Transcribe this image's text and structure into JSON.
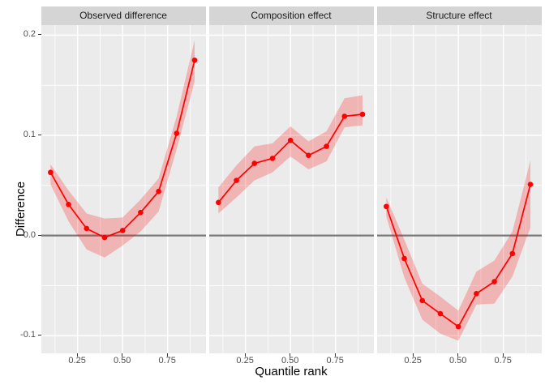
{
  "chart_data": {
    "type": "line",
    "title": "",
    "xlabel": "Quantile rank",
    "ylabel": "Difference",
    "x": [
      0.1,
      0.2,
      0.3,
      0.4,
      0.5,
      0.6,
      0.7,
      0.8,
      0.9
    ],
    "xlim": [
      0.049,
      0.963
    ],
    "ylim": [
      -0.118,
      0.21
    ],
    "hline": 0.0,
    "grid": true,
    "legend_position": "none",
    "x_ticks": {
      "values": [
        0.25,
        0.5,
        0.75
      ],
      "labels": [
        "0.25",
        "0.50",
        "0.75"
      ]
    },
    "y_ticks": {
      "values": [
        0.2,
        0.1,
        0.0,
        -0.1
      ],
      "labels": [
        "0.2",
        "0.1",
        "0.0",
        "-0.1"
      ]
    },
    "x_minor": [
      0.125,
      0.375,
      0.625,
      0.875
    ],
    "y_minor": [
      0.15,
      0.05,
      -0.05
    ],
    "panels": [
      {
        "label": "Observed difference",
        "y": [
          0.063,
          0.031,
          0.007,
          -0.002,
          0.005,
          0.023,
          0.044,
          0.102,
          0.175
        ],
        "lower": [
          0.051,
          0.014,
          -0.014,
          -0.022,
          -0.01,
          0.004,
          0.024,
          0.086,
          0.154
        ],
        "upper": [
          0.071,
          0.045,
          0.022,
          0.017,
          0.018,
          0.036,
          0.057,
          0.119,
          0.195
        ]
      },
      {
        "label": "Composition effect",
        "y": [
          0.033,
          0.055,
          0.072,
          0.077,
          0.095,
          0.08,
          0.089,
          0.119,
          0.121
        ],
        "lower": [
          0.022,
          0.038,
          0.055,
          0.063,
          0.079,
          0.066,
          0.074,
          0.108,
          0.11
        ],
        "upper": [
          0.048,
          0.07,
          0.089,
          0.092,
          0.109,
          0.094,
          0.104,
          0.137,
          0.14
        ]
      },
      {
        "label": "Structure effect",
        "y": [
          0.029,
          -0.023,
          -0.065,
          -0.078,
          -0.091,
          -0.058,
          -0.046,
          -0.018,
          0.051
        ],
        "lower": [
          0.019,
          -0.042,
          -0.084,
          -0.098,
          -0.105,
          -0.069,
          -0.068,
          -0.041,
          0.008
        ],
        "upper": [
          0.038,
          -0.004,
          -0.048,
          -0.061,
          -0.075,
          -0.036,
          -0.025,
          0.004,
          0.075
        ]
      }
    ]
  },
  "style": {
    "line_color": "#FF0000",
    "point_color": "#FF0000",
    "ribbon_color": "#FF0000",
    "ribbon_alpha": 0.23,
    "hline_color": "#7A7A7A",
    "panel_bg": "#EBEBEB",
    "strip_bg": "#D5D5D5",
    "grid_color": "#FFFFFF",
    "tick_color": "#333333",
    "tick_text_color": "#4D4D4D"
  }
}
